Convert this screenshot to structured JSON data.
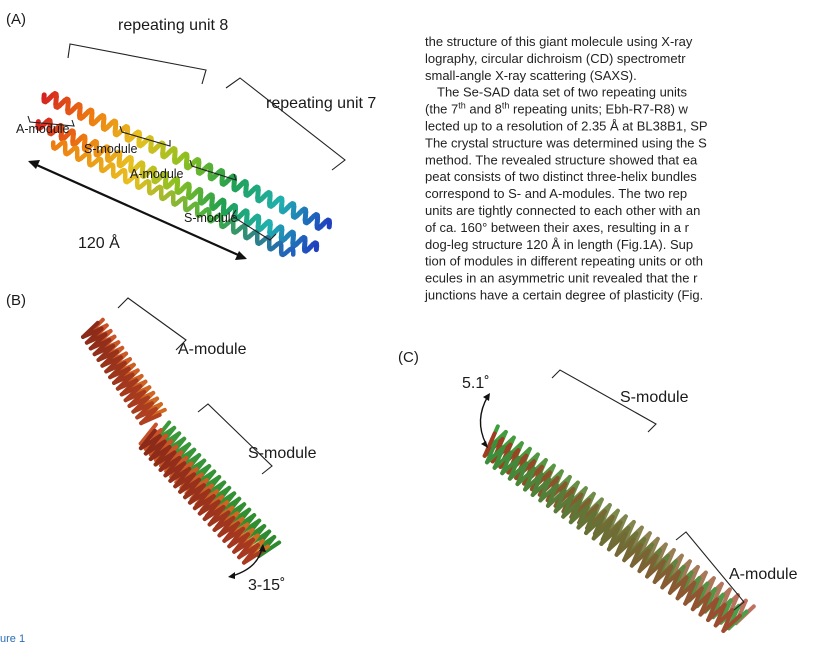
{
  "panel_a": {
    "label": "(A)",
    "unit8": "repeating unit 8",
    "unit7": "repeating unit 7",
    "modules": [
      "A-module",
      "S-module",
      "A-module",
      "S-module"
    ],
    "length": "120 Å"
  },
  "panel_b": {
    "label": "(B)",
    "a_module": "A-module",
    "s_module": "S-module",
    "angle": "3-15˚"
  },
  "panel_c": {
    "label": "(C)",
    "angle": "5.1˚",
    "s_module": "S-module",
    "a_module": "A-module"
  },
  "body_text": {
    "lines": [
      "the structure of this giant molecule using X-ray",
      "lography, circular dichroism (CD) spectrometr",
      "small-angle X-ray scattering (SAXS).",
      "The Se-SAD data set of two repeating units",
      [
        "(the 7",
        "th",
        " and 8",
        "th",
        " repeating units; Ebh-R7-R8) w"
      ],
      "lected up to a resolution of 2.35 Å at BL38B1, SP",
      "The crystal structure was determined using the S",
      "method. The revealed structure showed that ea",
      "peat consists of two distinct three-helix bundles",
      "correspond to S- and A-modules. The two rep",
      "units are tightly connected to each other with an",
      "of ca. 160° between their axes, resulting in a r",
      "dog-leg structure 120 Å in length (Fig.1A). Sup",
      "tion of modules in different repeating units or oth",
      "ecules in an asymmetric unit revealed that the r",
      "junctions have a certain degree of plasticity (Fig."
    ]
  },
  "caption": "ure 1"
}
